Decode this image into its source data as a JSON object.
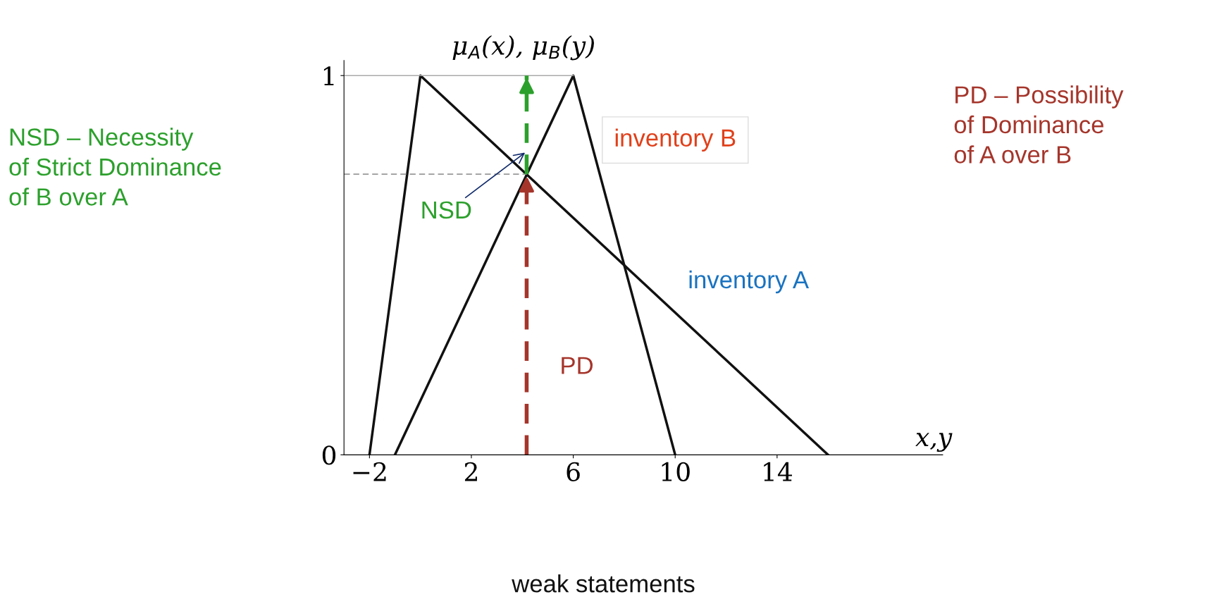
{
  "chart_data": {
    "type": "line",
    "xlabel": "x,y",
    "ylabel": "μ$_{A}$(x), μ$_{B}$(y)",
    "xlim": [
      -3,
      20.5
    ],
    "ylim": [
      0,
      1.04
    ],
    "xticks": [
      {
        "value": -2,
        "label": "−2"
      },
      2,
      6,
      10,
      14
    ],
    "yticks": [
      0,
      1
    ],
    "grid": false,
    "marker": "none",
    "series": [
      {
        "name": "inventory A",
        "color": "#111111",
        "x": [
          -2,
          0,
          16
        ],
        "values": [
          0,
          1,
          0
        ]
      },
      {
        "name": "inventory B",
        "color": "#111111",
        "x": [
          -1,
          6,
          10
        ],
        "values": [
          0,
          1,
          0
        ]
      },
      {
        "color": "#aaaaaa",
        "x": [
          -3,
          6
        ],
        "values": [
          1,
          1
        ],
        "line_style": "solid"
      },
      {
        "color": "#999999",
        "x": [
          -3,
          4.17
        ],
        "values": [
          0.74,
          0.74
        ],
        "line_style": "dashed"
      },
      {
        "color": "#a5352b",
        "x": [
          4.17,
          4.17
        ],
        "values": [
          0,
          0.74
        ],
        "line_style": "dashed"
      },
      {
        "color": "#2ca02c",
        "x": [
          4.17,
          4.17
        ],
        "values": [
          0.74,
          1
        ],
        "line_style": "dashed"
      }
    ],
    "annotations": [
      "NSD – Necessity\nof Strict Dominance\nof B over A",
      "PD – Possibility\nof Dominance\nof A over B",
      {
        "text": "NSD",
        "x": 4.17,
        "y": 0.8
      },
      {
        "text": "PD",
        "x": 4.17,
        "y": 0.37
      },
      "weak statements"
    ]
  }
}
